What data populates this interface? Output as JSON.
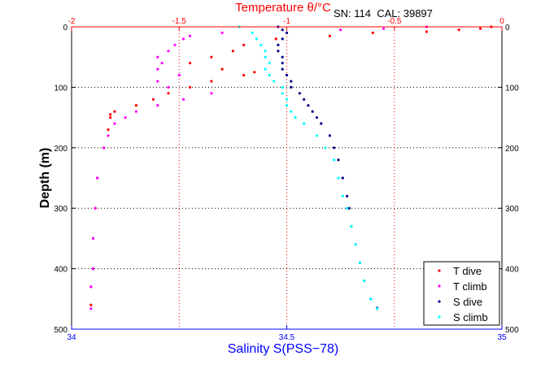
{
  "chart_data": {
    "type": "scatter",
    "top_axis": {
      "label": "Temperature θ/°C",
      "color": "#ff0000",
      "lim": [
        -2,
        0
      ],
      "ticks": [
        -2,
        -1.5,
        -1,
        -0.5,
        0
      ],
      "tick_labels": [
        "-2",
        "-1.5",
        "-1",
        "-0.5",
        "0"
      ]
    },
    "bottom_axis": {
      "label": "Salinity S(PSS−78)",
      "color": "#0000ff",
      "lim": [
        34,
        35
      ],
      "ticks": [
        34,
        34.5,
        35
      ],
      "tick_labels": [
        "34",
        "34.5",
        "35"
      ]
    },
    "y_axis": {
      "label": "Depth (m)",
      "lim": [
        0,
        500
      ],
      "reversed": true,
      "ticks": [
        0,
        100,
        200,
        300,
        400,
        500
      ],
      "tick_labels": [
        "0",
        "100",
        "200",
        "300",
        "400",
        "500"
      ]
    },
    "info_text": "SN: 114  CAL: 39897",
    "grid": true,
    "legend_position": "lower-right",
    "series": [
      {
        "name": "T dive",
        "axis": "top",
        "color": "#ff0000",
        "depth": [
          0,
          3,
          5,
          8,
          10,
          15,
          20,
          30,
          40,
          50,
          60,
          70,
          75,
          80,
          90,
          100,
          110,
          120,
          130,
          140,
          145,
          150,
          170,
          200,
          250,
          300,
          350,
          400,
          430,
          460
        ],
        "values": [
          -0.05,
          -0.1,
          -0.2,
          -0.35,
          -0.6,
          -0.8,
          -1.05,
          -1.2,
          -1.25,
          -1.35,
          -1.45,
          -1.3,
          -1.15,
          -1.2,
          -1.35,
          -1.45,
          -1.55,
          -1.62,
          -1.7,
          -1.8,
          -1.82,
          -1.82,
          -1.83,
          -1.85,
          -1.88,
          -1.89,
          -1.9,
          -1.9,
          -1.91,
          -1.91
        ]
      },
      {
        "name": "T climb",
        "axis": "top",
        "color": "#ff00ff",
        "depth": [
          0,
          3,
          5,
          10,
          15,
          20,
          30,
          40,
          50,
          60,
          70,
          80,
          90,
          100,
          110,
          120,
          130,
          140,
          150,
          160,
          180,
          200,
          250,
          300,
          350,
          400,
          430,
          466
        ],
        "values": [
          -0.35,
          -0.55,
          -0.75,
          -1.3,
          -1.45,
          -1.48,
          -1.52,
          -1.55,
          -1.6,
          -1.58,
          -1.6,
          -1.5,
          -1.6,
          -1.55,
          -1.35,
          -1.48,
          -1.6,
          -1.7,
          -1.75,
          -1.8,
          -1.83,
          -1.85,
          -1.88,
          -1.89,
          -1.9,
          -1.9,
          -1.91,
          -1.91
        ]
      },
      {
        "name": "S dive",
        "axis": "bottom",
        "color": "#00008b",
        "depth": [
          0,
          5,
          10,
          20,
          30,
          40,
          50,
          60,
          70,
          80,
          90,
          100,
          110,
          120,
          130,
          140,
          150,
          160,
          180,
          200,
          220,
          250,
          280,
          300,
          330,
          360,
          390,
          420,
          450,
          465
        ],
        "values": [
          34.48,
          34.49,
          34.5,
          34.49,
          34.48,
          34.48,
          34.49,
          34.49,
          34.49,
          34.5,
          34.51,
          34.51,
          34.53,
          34.54,
          34.55,
          34.56,
          34.57,
          34.58,
          34.6,
          34.61,
          34.62,
          34.63,
          34.64,
          34.645,
          34.65,
          34.66,
          34.67,
          34.68,
          34.695,
          34.71
        ]
      },
      {
        "name": "S climb",
        "axis": "bottom",
        "color": "#00ffff",
        "depth": [
          0,
          10,
          20,
          30,
          40,
          50,
          60,
          70,
          80,
          90,
          100,
          110,
          120,
          130,
          140,
          150,
          160,
          180,
          200,
          220,
          250,
          280,
          300,
          330,
          360,
          390,
          420,
          450,
          466
        ],
        "values": [
          34.39,
          34.42,
          34.43,
          34.44,
          34.45,
          34.45,
          34.46,
          34.45,
          34.46,
          34.47,
          34.49,
          34.49,
          34.5,
          34.5,
          34.51,
          34.52,
          34.54,
          34.57,
          34.59,
          34.61,
          34.62,
          34.63,
          34.64,
          34.65,
          34.66,
          34.67,
          34.68,
          34.695,
          34.71
        ]
      }
    ]
  }
}
